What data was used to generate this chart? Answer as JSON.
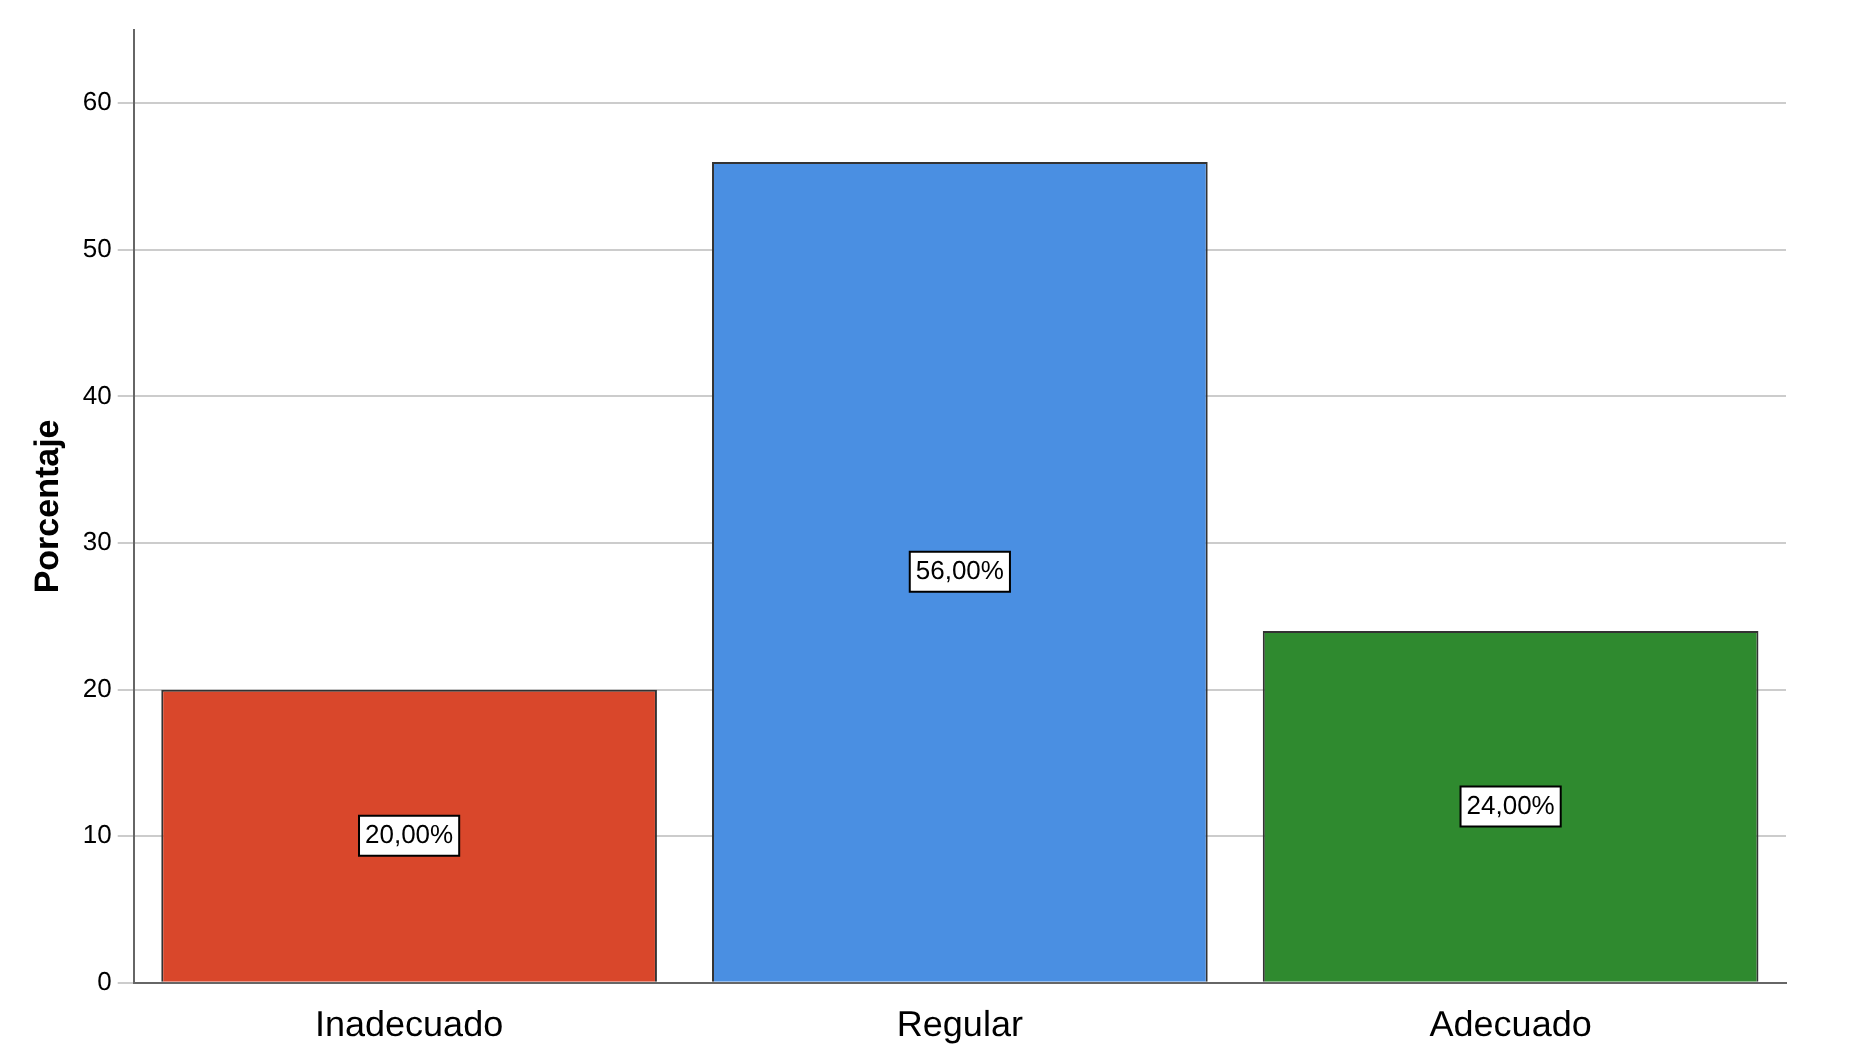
{
  "chart_data": {
    "type": "bar",
    "ylabel": "Porcentaje",
    "categories": [
      "Inadecuado",
      "Regular",
      "Adecuado"
    ],
    "values": [
      20,
      56,
      24
    ],
    "colors": [
      "#d9472b",
      "#4a8fe2",
      "#2f8a2f"
    ],
    "value_labels": [
      "20,00%",
      "56,00%",
      "24,00%"
    ],
    "ylim": [
      0,
      65
    ],
    "yticks": [
      0,
      10,
      20,
      30,
      40,
      50,
      60
    ],
    "grid": "y",
    "legend": false
  }
}
